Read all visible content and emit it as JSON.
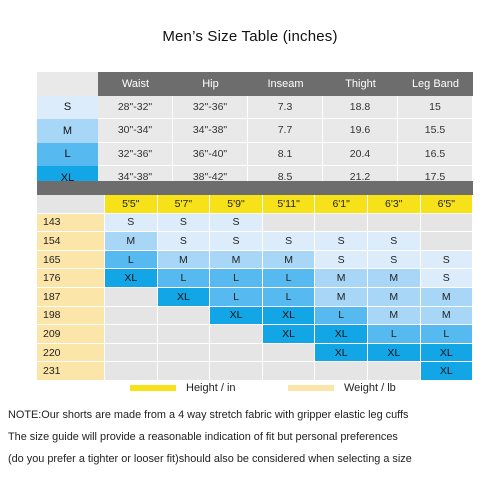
{
  "title": "Men’s  Size Table  (inches)",
  "measurement_table": {
    "columns": [
      "Waist",
      "Hip",
      "Inseam",
      "Thight",
      "Leg Band"
    ],
    "rows": [
      {
        "size": "S",
        "tone": "s",
        "values": [
          "28\"-32\"",
          "32\"-36\"",
          "7.3",
          "18.8",
          "15"
        ]
      },
      {
        "size": "M",
        "tone": "m",
        "values": [
          "30\"-34\"",
          "34\"-38\"",
          "7.7",
          "19.6",
          "15.5"
        ]
      },
      {
        "size": "L",
        "tone": "l",
        "values": [
          "32\"-36\"",
          "36\"-40\"",
          "8.1",
          "20.4",
          "16.5"
        ]
      },
      {
        "size": "XL",
        "tone": "xl",
        "values": [
          "34\"-38\"",
          "38\"-42\"",
          "8.5",
          "21.2",
          "17.5"
        ]
      }
    ]
  },
  "fit_grid": {
    "heights": [
      "5'5\"",
      "5'7\"",
      "5'9\"",
      "5'11\"",
      "6'1\"",
      "6'3\"",
      "6'5\""
    ],
    "weights": [
      "143",
      "154",
      "165",
      "176",
      "187",
      "198",
      "209",
      "220",
      "231"
    ],
    "cells": [
      [
        "S",
        "S",
        "S",
        "",
        "",
        "",
        ""
      ],
      [
        "M",
        "S",
        "S",
        "S",
        "S",
        "S",
        ""
      ],
      [
        "L",
        "M",
        "M",
        "M",
        "S",
        "S",
        "S"
      ],
      [
        "XL",
        "L",
        "L",
        "L",
        "M",
        "M",
        "S"
      ],
      [
        "",
        "XL",
        "L",
        "L",
        "M",
        "M",
        "M"
      ],
      [
        "",
        "",
        "XL",
        "XL",
        "L",
        "M",
        "M"
      ],
      [
        "",
        "",
        "",
        "XL",
        "XL",
        "L",
        "L"
      ],
      [
        "",
        "",
        "",
        "",
        "XL",
        "XL",
        "XL"
      ],
      [
        "",
        "",
        "",
        "",
        "",
        "",
        "XL"
      ]
    ]
  },
  "legend": {
    "height_label": "Height / in",
    "weight_label": "Weight / lb",
    "height_color": "#f7e21a",
    "weight_color": "#fce5a8"
  },
  "note": [
    "NOTE:Our shorts are made from a 4 way stretch fabric with gripper elastic leg cuffs",
    "The size guide will provide a reasonable indication of fit but personal preferences",
    "(do you prefer a tighter or looser fit)should also be considered when selecting a size"
  ],
  "colors": {
    "header_gray": "#6d6d6d",
    "cell_gray": "#e9e9e9",
    "size_s": "#dcecfb",
    "size_m": "#a8d6f6",
    "size_l": "#56b9ef",
    "size_xl": "#12a6e6"
  }
}
